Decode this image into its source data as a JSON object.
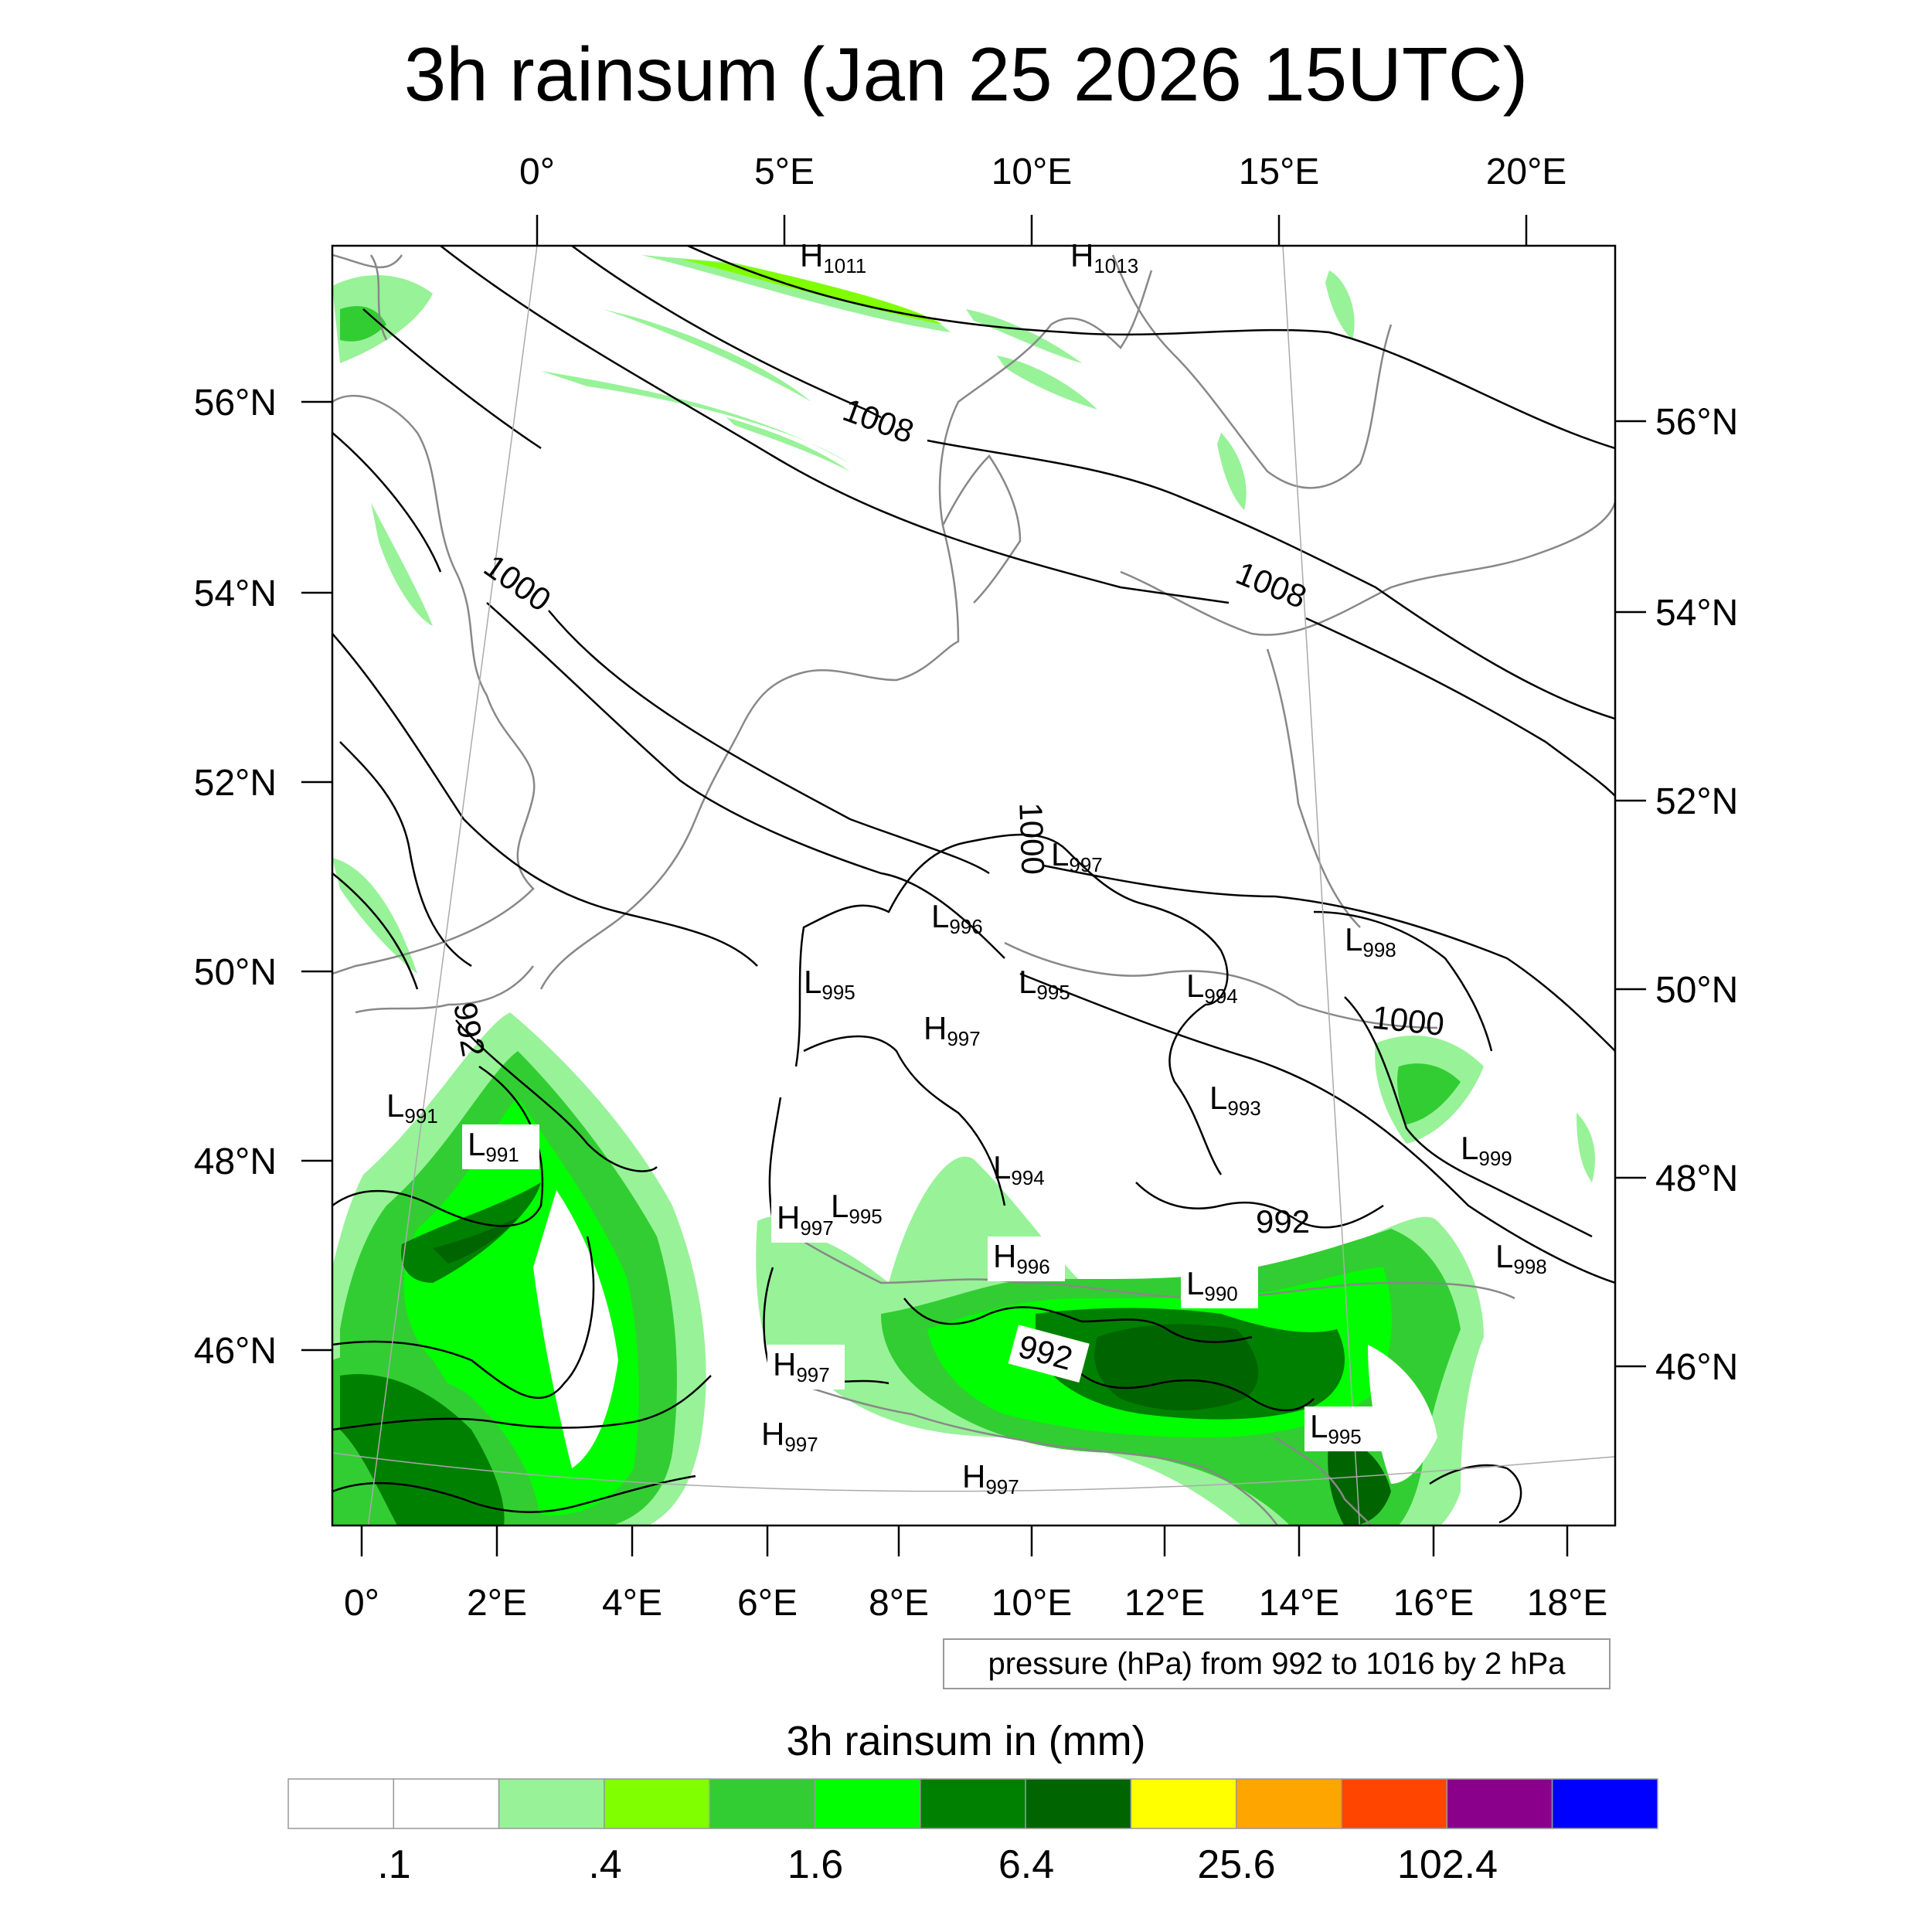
{
  "title": "3h rainsum (Jan 25 2026 15UTC)",
  "top_lon_labels": [
    "0°",
    "5°E",
    "10°E",
    "15°E",
    "20°E"
  ],
  "bottom_lon_labels": [
    "0°",
    "2°E",
    "4°E",
    "6°E",
    "8°E",
    "10°E",
    "12°E",
    "14°E",
    "16°E",
    "18°E"
  ],
  "left_lat_labels": [
    "56°N",
    "54°N",
    "52°N",
    "50°N",
    "48°N",
    "46°N"
  ],
  "right_lat_labels": [
    "56°N",
    "54°N",
    "52°N",
    "50°N",
    "48°N",
    "46°N"
  ],
  "contour_labels": [
    "1008",
    "1008",
    "1000",
    "1000",
    "1000",
    "992",
    "992",
    "992"
  ],
  "pressure_centers": [
    {
      "type": "H",
      "value": "1011"
    },
    {
      "type": "H",
      "value": "1013"
    },
    {
      "type": "L",
      "value": "997"
    },
    {
      "type": "L",
      "value": "996"
    },
    {
      "type": "L",
      "value": "995"
    },
    {
      "type": "L",
      "value": "995"
    },
    {
      "type": "H",
      "value": "997"
    },
    {
      "type": "L",
      "value": "994"
    },
    {
      "type": "L",
      "value": "998"
    },
    {
      "type": "L",
      "value": "991"
    },
    {
      "type": "L",
      "value": "991"
    },
    {
      "type": "L",
      "value": "993"
    },
    {
      "type": "L",
      "value": "994"
    },
    {
      "type": "L",
      "value": "999"
    },
    {
      "type": "H",
      "value": "997"
    },
    {
      "type": "L",
      "value": "995"
    },
    {
      "type": "H",
      "value": "996"
    },
    {
      "type": "L",
      "value": "990"
    },
    {
      "type": "L",
      "value": "998"
    },
    {
      "type": "H",
      "value": "997"
    },
    {
      "type": "H",
      "value": "997"
    },
    {
      "type": "H",
      "value": "997"
    },
    {
      "type": "L",
      "value": "995"
    }
  ],
  "contour_note": "pressure (hPa) from 992 to 1016 by 2 hPa",
  "colorbar": {
    "title": "3h rainsum in (mm)",
    "colors": [
      "#ffffff",
      "#ffffff",
      "#98f298",
      "#80ff00",
      "#32cd32",
      "#00ff00",
      "#008000",
      "#006400",
      "#ffff00",
      "#ffa500",
      "#ff4500",
      "#8b008b",
      "#0000ff"
    ],
    "labels": [
      ".1",
      ".4",
      "1.6",
      "6.4",
      "25.6",
      "102.4"
    ]
  }
}
